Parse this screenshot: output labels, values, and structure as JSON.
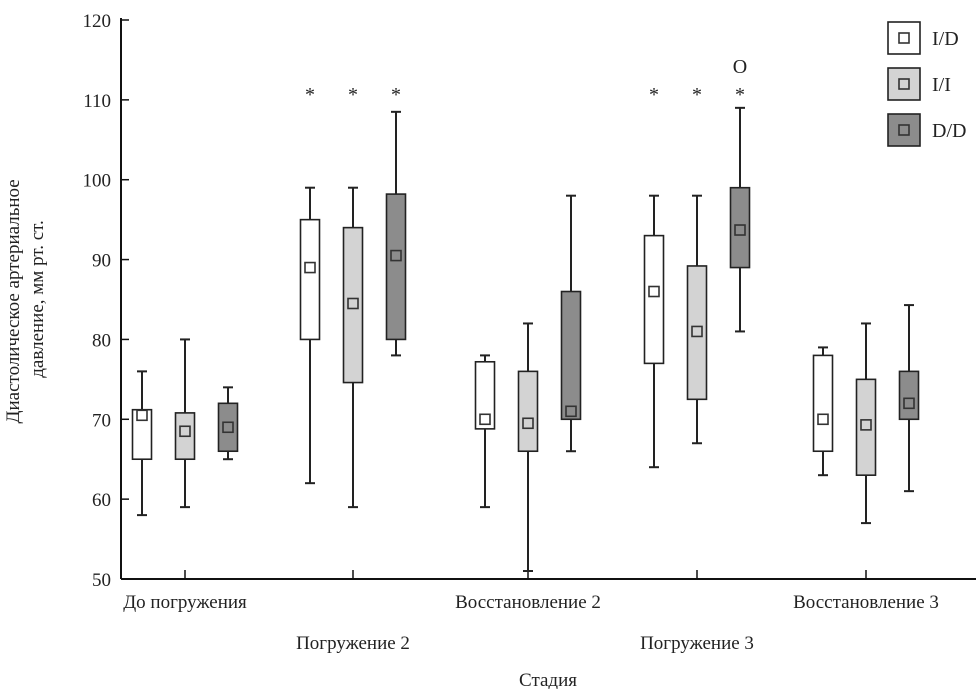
{
  "chart_data": {
    "type": "boxplot",
    "ylabel": "Диастолическое артериальное давление, мм рт. ст.",
    "xlabel": "Стадия",
    "ylim": [
      50,
      120
    ],
    "yticks": [
      50,
      60,
      70,
      80,
      90,
      100,
      110,
      120
    ],
    "categories": [
      "До погружения",
      "Погружение 2",
      "Восстановление 2",
      "Погружение 3",
      "Восстановление 3"
    ],
    "legend_position": "top-right",
    "series": [
      {
        "name": "I/D",
        "color": "#ffffff",
        "boxes": [
          {
            "min": 58,
            "q1": 65,
            "q3": 71.2,
            "max": 76,
            "mean": 70.5,
            "marker": ""
          },
          {
            "min": 62,
            "q1": 80,
            "q3": 95,
            "max": 99,
            "mean": 89,
            "marker": "*"
          },
          {
            "min": 59,
            "q1": 68.8,
            "q3": 77.2,
            "max": 78,
            "mean": 70,
            "marker": ""
          },
          {
            "min": 64,
            "q1": 77,
            "q3": 93,
            "max": 98,
            "mean": 86,
            "marker": "*"
          },
          {
            "min": 63,
            "q1": 66,
            "q3": 78,
            "max": 79,
            "mean": 70,
            "marker": ""
          }
        ]
      },
      {
        "name": "I/I",
        "color": "#d3d3d3",
        "boxes": [
          {
            "min": 59,
            "q1": 65,
            "q3": 70.8,
            "max": 80,
            "mean": 68.5,
            "marker": ""
          },
          {
            "min": 59,
            "q1": 74.6,
            "q3": 94,
            "max": 99,
            "mean": 84.5,
            "marker": "*"
          },
          {
            "min": 51,
            "q1": 66,
            "q3": 76,
            "max": 82,
            "mean": 69.5,
            "marker": ""
          },
          {
            "min": 67,
            "q1": 72.5,
            "q3": 89.2,
            "max": 98,
            "mean": 81,
            "marker": "*"
          },
          {
            "min": 57,
            "q1": 63,
            "q3": 75,
            "max": 82,
            "mean": 69.3,
            "marker": ""
          }
        ]
      },
      {
        "name": "D/D",
        "color": "#8c8c8c",
        "boxes": [
          {
            "min": 65,
            "q1": 66,
            "q3": 72,
            "max": 74,
            "mean": 69,
            "marker": ""
          },
          {
            "min": 78,
            "q1": 80,
            "q3": 98.2,
            "max": 108.5,
            "mean": 90.5,
            "marker": "*"
          },
          {
            "min": 66,
            "q1": 70,
            "q3": 86,
            "max": 98,
            "mean": 71,
            "marker": ""
          },
          {
            "min": 81,
            "q1": 89,
            "q3": 99,
            "max": 109,
            "mean": 93.7,
            "marker": "*",
            "marker2": "O"
          },
          {
            "min": 61,
            "q1": 70,
            "q3": 76,
            "max": 84.3,
            "mean": 72,
            "marker": ""
          }
        ]
      }
    ]
  }
}
